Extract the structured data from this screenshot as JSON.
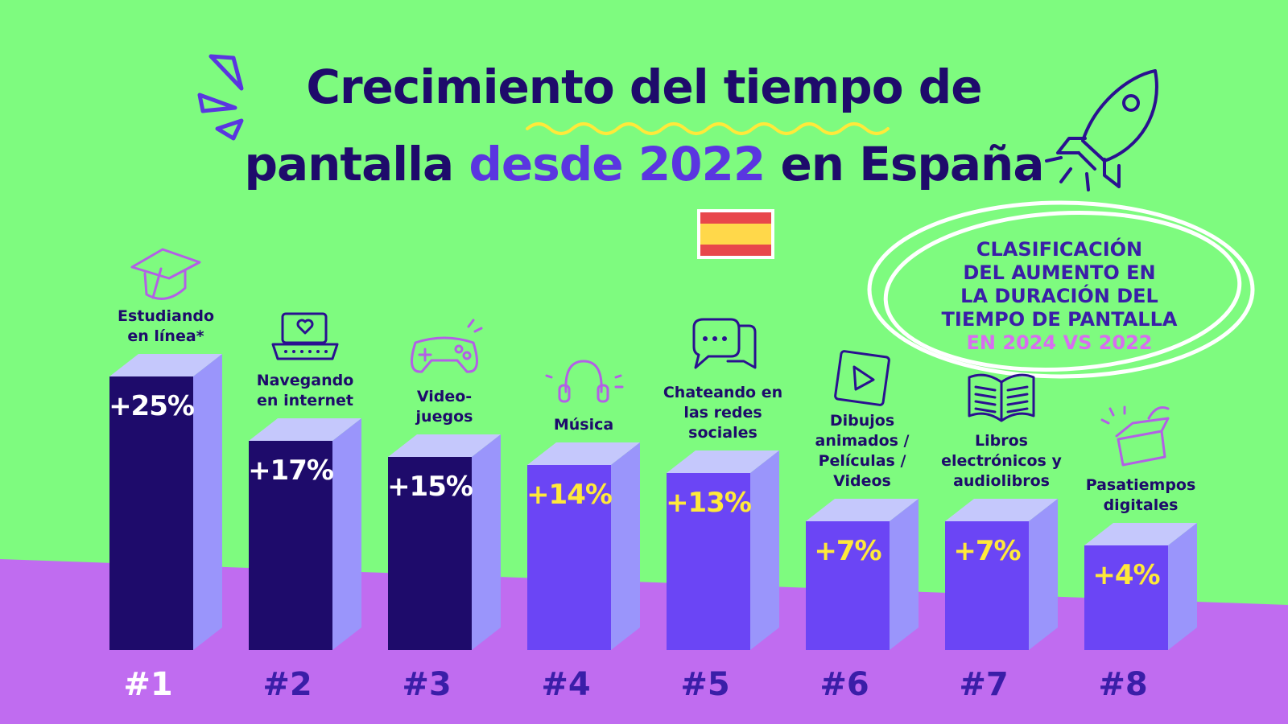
{
  "title": {
    "line1": "Crecimiento del tiempo de",
    "line2_part1": "pantalla ",
    "line2_highlight": "desde 2022",
    "line2_part3": " en España"
  },
  "callout": {
    "lines": [
      "CLASIFICACIÓN",
      "DEL AUMENTO EN",
      "LA DURACIÓN DEL",
      "TIEMPO DE PANTALLA"
    ],
    "highlight": "EN 2024 VS 2022"
  },
  "colors": {
    "background_top": "#7efb7f",
    "background_bottom": "#c06cf0",
    "title": "#1e0b6b",
    "title_highlight": "#5a36e0",
    "bar_dark": "#1e0b6b",
    "bar_light": "#6b45f5",
    "bar_side": "#9a95fb",
    "bar_top": "#c5c8fc",
    "value_white": "#ffffff",
    "value_yellow": "#ffe93a",
    "rank_white": "#ffffff",
    "rank_purple": "#3a1ea8",
    "callout_text": "#3a1ea8",
    "callout_highlight": "#d86df0"
  },
  "chart_data": {
    "type": "bar",
    "categories": [
      [
        "Estudiando",
        "en línea*"
      ],
      [
        "Navegando",
        "en internet"
      ],
      [
        "Video-",
        "juegos"
      ],
      [
        "Música"
      ],
      [
        "Chateando en",
        "las redes",
        "sociales"
      ],
      [
        "Dibujos",
        "animados /",
        "Películas /",
        "Videos"
      ],
      [
        "Libros",
        "electrónicos y",
        "audiolibros"
      ],
      [
        "Pasatiempos",
        "digitales"
      ]
    ],
    "values": [
      25,
      17,
      15,
      14,
      13,
      7,
      7,
      4
    ],
    "value_labels": [
      "+25%",
      "+17%",
      "+15%",
      "+14%",
      "+13%",
      "+7%",
      "+7%",
      "+4%"
    ],
    "ranks": [
      "#1",
      "#2",
      "#3",
      "#4",
      "#5",
      "#6",
      "#7",
      "#8"
    ],
    "icons": [
      "graduation-cap-icon",
      "laptop-heart-icon",
      "gamepad-icon",
      "headphones-icon",
      "chat-bubbles-icon",
      "play-video-icon",
      "open-book-icon",
      "gift-box-icon"
    ],
    "unit": "%"
  }
}
